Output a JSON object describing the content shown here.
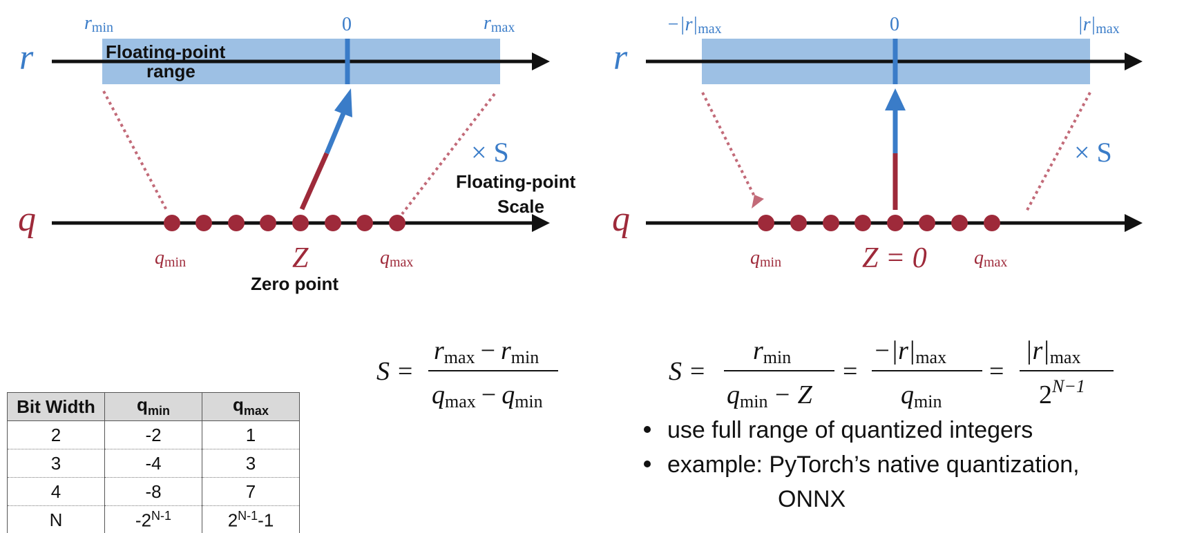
{
  "left_diagram": {
    "r_axis": "r",
    "q_axis": "q",
    "r_min_base": "r",
    "r_min_sub": "min",
    "zero": "0",
    "r_max_base": "r",
    "r_max_sub": "max",
    "fp_range_line1": "Floating-point",
    "fp_range_line2": "range",
    "scale_symbol": "× S",
    "fp_scale_line1": "Floating-point",
    "fp_scale_line2": "Scale",
    "q_min_base": "q",
    "q_min_sub": "min",
    "z_label": "Z",
    "q_max_base": "q",
    "q_max_sub": "max",
    "zero_point_label": "Zero point"
  },
  "right_diagram": {
    "r_axis": "r",
    "q_axis": "q",
    "neg_r_max_base": "−|r|",
    "neg_r_max_sub": "max",
    "zero": "0",
    "r_max_base": "|r|",
    "r_max_sub": "max",
    "scale_symbol": "× S",
    "q_min_base": "q",
    "q_min_sub": "min",
    "z_label": "Z = 0",
    "q_max_base": "q",
    "q_max_sub": "max"
  },
  "equation_left": {
    "lhs": "S =",
    "num": "r",
    "num_sub1": "max",
    "minus": "−",
    "num2": "r",
    "num_sub2": "min",
    "den": "q",
    "den_sub1": "max",
    "den2": "q",
    "den_sub2": "min"
  },
  "equation_right": {
    "lhs": "S =",
    "f1_num": "r",
    "f1_num_sub": "min",
    "f1_den": "q",
    "f1_den_sub": "min",
    "f1_den_tail": "− Z",
    "eq": "=",
    "f2_num": "−|r|",
    "f2_num_sub": "max",
    "f2_den": "q",
    "f2_den_sub": "min",
    "f3_num": "|r|",
    "f3_num_sub": "max",
    "f3_den": "2",
    "f3_den_sup": "N−1"
  },
  "bullets": [
    "use full range of quantized integers",
    "example: PyTorch’s native quantization,",
    "ONNX"
  ],
  "table": {
    "headers": {
      "bit_width": "Bit Width",
      "qmin_base": "q",
      "qmin_sub": "min",
      "qmax_base": "q",
      "qmax_sub": "max"
    },
    "rows": [
      {
        "bits": "2",
        "qmin": "-2",
        "qmax": "1"
      },
      {
        "bits": "3",
        "qmin": "-4",
        "qmax": "3"
      },
      {
        "bits": "4",
        "qmin": "-8",
        "qmax": "7"
      }
    ],
    "last_row": {
      "bits": "N",
      "qmin_base": "-2",
      "qmin_sup": "N-1",
      "qmax_base": "2",
      "qmax_sup": "N-1",
      "qmax_tail": "-1"
    }
  },
  "colors": {
    "blue": "#3a7cc8",
    "red": "#9e2a3a",
    "range_fill": "#9dc0e4",
    "dotted": "#c26a78"
  }
}
